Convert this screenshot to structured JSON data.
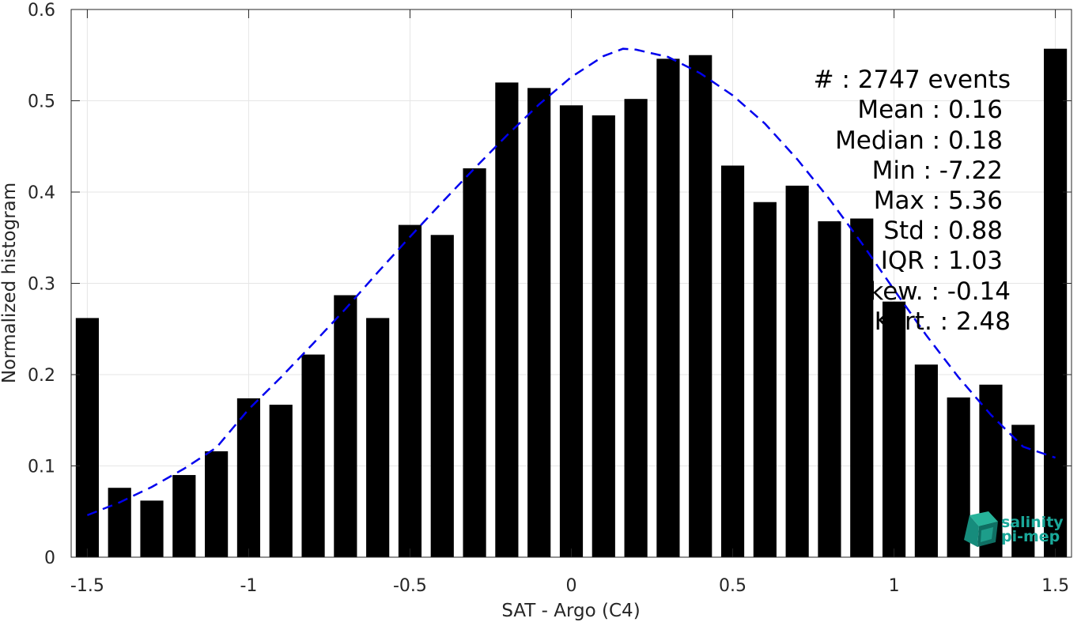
{
  "chart_data": {
    "type": "bar",
    "title": "",
    "xlabel": "SAT - Argo (C4)",
    "ylabel": "Normalized histogram",
    "xlim": [
      -1.55,
      1.55
    ],
    "ylim": [
      0,
      0.6
    ],
    "grid": true,
    "xticks": [
      -1.5,
      -1,
      -0.5,
      0,
      0.5,
      1,
      1.5
    ],
    "xtick_labels": [
      "-1.5",
      "-1",
      "-0.5",
      "0",
      "0.5",
      "1",
      "1.5"
    ],
    "yticks": [
      0,
      0.1,
      0.2,
      0.3,
      0.4,
      0.5,
      0.6
    ],
    "ytick_labels": [
      "0",
      "0.1",
      "0.2",
      "0.3",
      "0.4",
      "0.5",
      "0.6"
    ],
    "x": [
      -1.5,
      -1.4,
      -1.3,
      -1.2,
      -1.1,
      -1.0,
      -0.9,
      -0.8,
      -0.7,
      -0.6,
      -0.5,
      -0.4,
      -0.3,
      -0.2,
      -0.1,
      0.0,
      0.1,
      0.2,
      0.3,
      0.4,
      0.5,
      0.6,
      0.7,
      0.8,
      0.9,
      1.0,
      1.1,
      1.2,
      1.3,
      1.4,
      1.5
    ],
    "values": [
      0.262,
      0.076,
      0.062,
      0.09,
      0.116,
      0.174,
      0.167,
      0.222,
      0.287,
      0.262,
      0.364,
      0.353,
      0.426,
      0.52,
      0.514,
      0.495,
      0.484,
      0.502,
      0.546,
      0.55,
      0.429,
      0.389,
      0.407,
      0.368,
      0.371,
      0.28,
      0.211,
      0.175,
      0.189,
      0.145,
      0.557
    ],
    "bar_color": "#000000",
    "fit_curve": {
      "style": "dashed",
      "color": "#0000ee",
      "x": [
        -1.5,
        -1.4,
        -1.3,
        -1.2,
        -1.1,
        -1.0,
        -0.9,
        -0.8,
        -0.7,
        -0.6,
        -0.5,
        -0.4,
        -0.3,
        -0.2,
        -0.1,
        0.0,
        0.1,
        0.16,
        0.2,
        0.3,
        0.4,
        0.5,
        0.6,
        0.7,
        0.8,
        0.9,
        1.0,
        1.1,
        1.2,
        1.3,
        1.4,
        1.5
      ],
      "y": [
        0.046,
        0.06,
        0.077,
        0.097,
        0.12,
        0.162,
        0.197,
        0.234,
        0.272,
        0.312,
        0.351,
        0.389,
        0.426,
        0.462,
        0.496,
        0.526,
        0.549,
        0.557,
        0.556,
        0.548,
        0.53,
        0.506,
        0.475,
        0.436,
        0.392,
        0.344,
        0.293,
        0.243,
        0.197,
        0.156,
        0.121,
        0.109
      ]
    }
  },
  "stats": [
    "#  : 2747 events",
    "Mean : 0.16",
    "Median : 0.18",
    "Min : -7.22",
    "Max : 5.36",
    "Std : 0.88",
    "IQR : 1.03",
    "Skew. : -0.14",
    "Kurt. : 2.48"
  ],
  "logo": {
    "line1": "salinity",
    "line2": "pi-mep",
    "color": "#1aa89a"
  }
}
